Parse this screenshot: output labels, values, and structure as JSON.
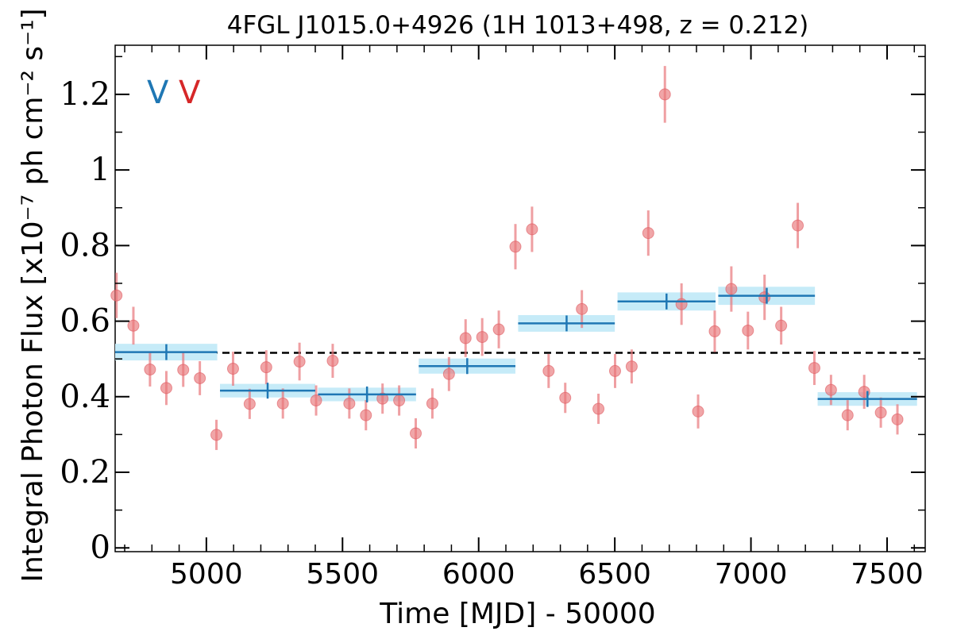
{
  "chart_data": {
    "type": "scatter",
    "title": "4FGL J1015.0+4926 (1H 1013+498, z = 0.212)",
    "xlabel": "Time [MJD] - 50000",
    "ylabel": "Integral Photon Flux [x10⁻⁷ ph cm⁻² s⁻¹]",
    "xlim": [
      4665,
      7640
    ],
    "ylim": [
      -0.01,
      1.33
    ],
    "xticks": [
      "5000",
      "5500",
      "6000",
      "6500",
      "7000",
      "7500"
    ],
    "yticks": [
      "0",
      "0.2",
      "0.4",
      "0.6",
      "0.8",
      "1",
      "1.2"
    ],
    "mean_flux": 0.516,
    "legend": [
      {
        "label": "V",
        "color": "#1f77b4"
      },
      {
        "label": "V",
        "color": "#d62728"
      }
    ],
    "series": [
      {
        "color": "#e8767a",
        "style": "points-with-errorbars",
        "x": [
          4670,
          4732,
          4793,
          4853,
          4915,
          4976,
          5037,
          5098,
          5159,
          5220,
          5281,
          5342,
          5403,
          5464,
          5525,
          5586,
          5647,
          5708,
          5769,
          5830,
          5891,
          5952,
          6013,
          6074,
          6135,
          6196,
          6257,
          6318,
          6379,
          6440,
          6501,
          6562,
          6623,
          6684,
          6745,
          6806,
          6867,
          6928,
          6989,
          7050,
          7111,
          7172,
          7233,
          7294,
          7355,
          7416,
          7477,
          7538
        ],
        "y": [
          0.668,
          0.588,
          0.472,
          0.423,
          0.471,
          0.449,
          0.299,
          0.474,
          0.381,
          0.478,
          0.382,
          0.493,
          0.39,
          0.495,
          0.382,
          0.351,
          0.395,
          0.39,
          0.303,
          0.382,
          0.46,
          0.555,
          0.558,
          0.578,
          0.797,
          0.843,
          0.468,
          0.397,
          0.632,
          0.368,
          0.468,
          0.48,
          0.833,
          1.2,
          0.645,
          0.361,
          0.573,
          0.685,
          0.575,
          0.663,
          0.588,
          0.853,
          0.476,
          0.418,
          0.351,
          0.413,
          0.358,
          0.34
        ],
        "yerr": [
          0.06,
          0.05,
          0.045,
          0.045,
          0.045,
          0.045,
          0.04,
          0.045,
          0.04,
          0.045,
          0.04,
          0.05,
          0.04,
          0.045,
          0.04,
          0.04,
          0.04,
          0.04,
          0.04,
          0.04,
          0.045,
          0.05,
          0.05,
          0.05,
          0.06,
          0.06,
          0.045,
          0.04,
          0.05,
          0.04,
          0.045,
          0.045,
          0.06,
          0.075,
          0.055,
          0.045,
          0.055,
          0.06,
          0.05,
          0.06,
          0.05,
          0.06,
          0.045,
          0.04,
          0.04,
          0.045,
          0.04,
          0.04
        ]
      },
      {
        "color": "#1f77b4",
        "band_color": "#c6ebf8",
        "style": "bayesian-blocks",
        "x_start": [
          4665,
          5050,
          5410,
          5780,
          6145,
          6510,
          6880,
          7245
        ],
        "x_end": [
          5040,
          5400,
          5770,
          6135,
          6500,
          6870,
          7235,
          7610
        ],
        "x_mid": [
          4853,
          5225,
          5590,
          5958,
          6323,
          6690,
          7058,
          7428
        ],
        "y": [
          0.518,
          0.416,
          0.406,
          0.481,
          0.594,
          0.652,
          0.667,
          0.394
        ],
        "yerr": [
          0.022,
          0.018,
          0.018,
          0.02,
          0.022,
          0.024,
          0.024,
          0.018
        ]
      }
    ]
  }
}
